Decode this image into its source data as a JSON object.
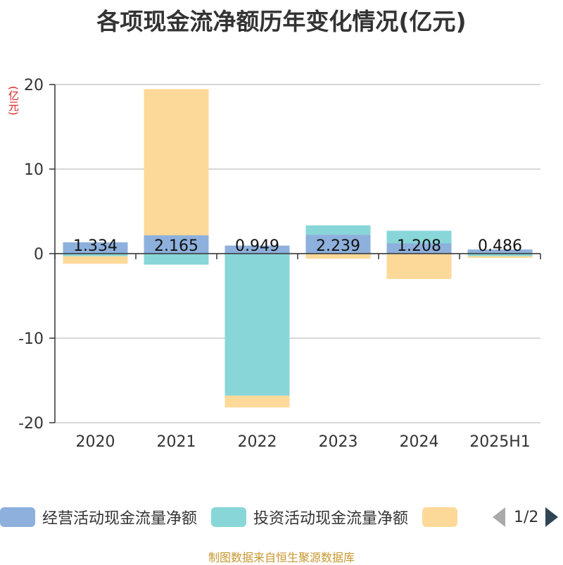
{
  "chart_data": {
    "type": "bar",
    "stacked": true,
    "title": "各项现金流净额历年变化情况(亿元)",
    "ylabel": "(亿元)",
    "categories": [
      "2020",
      "2021",
      "2022",
      "2023",
      "2024",
      "2025H1"
    ],
    "ylim": [
      -20,
      20
    ],
    "yticks": [
      20,
      10,
      0,
      -10,
      -20
    ],
    "grid": true,
    "series": [
      {
        "name": "经营活动现金流量净额",
        "color": "#8eb0dc",
        "values": [
          1.334,
          2.165,
          0.949,
          2.239,
          1.208,
          0.486
        ],
        "labels": [
          "1.334",
          "2.165",
          "0.949",
          "2.239",
          "1.208",
          "0.486"
        ]
      },
      {
        "name": "投资活动现金流量净额",
        "color": "#88d6d8",
        "values": [
          -0.3,
          -1.3,
          -16.8,
          1.1,
          1.5,
          -0.3
        ]
      },
      {
        "name": "",
        "color": "#fdd999",
        "values": [
          -0.9,
          17.3,
          -1.4,
          -0.6,
          -3.0,
          -0.2
        ]
      }
    ]
  },
  "legend": {
    "page": "1/2"
  },
  "source": "制图数据来自恒生聚源数据库"
}
